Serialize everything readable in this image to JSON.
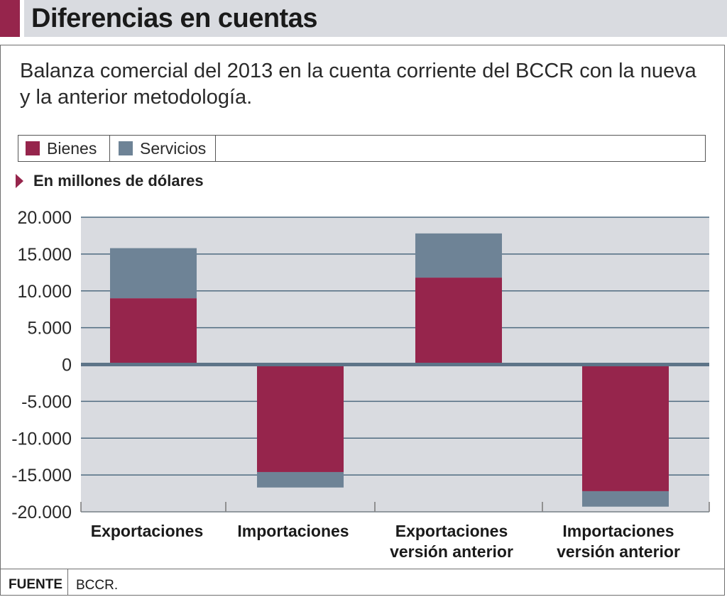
{
  "header": {
    "title": "Diferencias en cuentas",
    "subtitle": "Balanza comercial del 2013 en la cuenta corriente del BCCR con la nueva y la anterior metodología."
  },
  "legend": [
    {
      "label": "Bienes",
      "color": "#96254c"
    },
    {
      "label": "Servicios",
      "color": "#6e8396"
    }
  ],
  "unit_label": "En millones de dólares",
  "source": {
    "label": "FUENTE",
    "value": "BCCR."
  },
  "colors": {
    "bienes": "#96254c",
    "servicios": "#6e8396",
    "plot_bg": "#d9dbe0",
    "grid": "#4f6b80"
  },
  "chart_data": {
    "type": "bar",
    "stacked": true,
    "title": "Diferencias en cuentas",
    "ylabel": "En millones de dólares",
    "categories": [
      [
        "Exportaciones"
      ],
      [
        "Importaciones"
      ],
      [
        "Exportaciones",
        "versión anterior"
      ],
      [
        "Importaciones",
        "versión anterior"
      ]
    ],
    "series": [
      {
        "name": "Bienes",
        "values": [
          9000,
          -14600,
          11800,
          -17200
        ]
      },
      {
        "name": "Servicios",
        "values": [
          6800,
          -2100,
          6000,
          -2100
        ]
      }
    ],
    "yticks": [
      "20.000",
      "15.000",
      "10.000",
      "5.000",
      "0",
      "-5.000",
      "-10.000",
      "-15.000",
      "-20.000"
    ],
    "ylim": [
      -20000,
      20000
    ],
    "grid": true,
    "legend_position": "top"
  }
}
